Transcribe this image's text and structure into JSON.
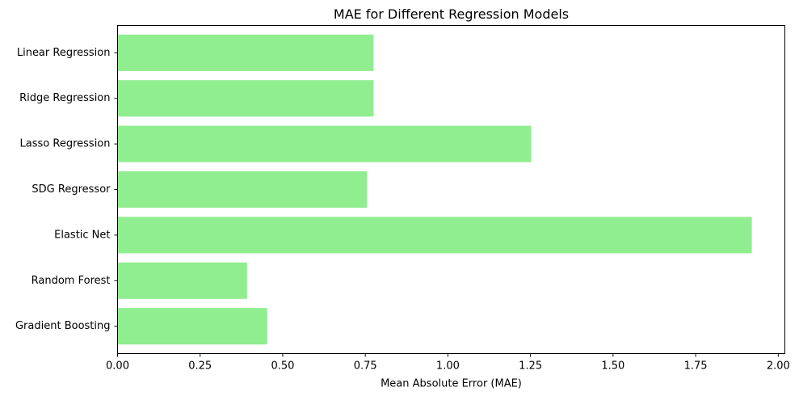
{
  "chart_data": {
    "type": "bar",
    "orientation": "horizontal",
    "title": "MAE for Different Regression Models",
    "xlabel": "Mean Absolute Error (MAE)",
    "ylabel": "",
    "xlim": [
      0,
      2.02
    ],
    "xticks": [
      0.0,
      0.25,
      0.5,
      0.75,
      1.0,
      1.25,
      1.5,
      1.75,
      2.0
    ],
    "xtick_labels": [
      "0.00",
      "0.25",
      "0.50",
      "0.75",
      "1.00",
      "1.25",
      "1.50",
      "1.75",
      "2.00"
    ],
    "categories": [
      "Linear Regression",
      "Ridge Regression",
      "Lasso Regression",
      "SDG Regressor",
      "Elastic Net",
      "Random Forest",
      "Gradient Boosting"
    ],
    "values": [
      0.775,
      0.775,
      1.252,
      0.755,
      1.92,
      0.392,
      0.453
    ],
    "bar_color": "#90ee90",
    "grid": false,
    "legend": "none"
  }
}
